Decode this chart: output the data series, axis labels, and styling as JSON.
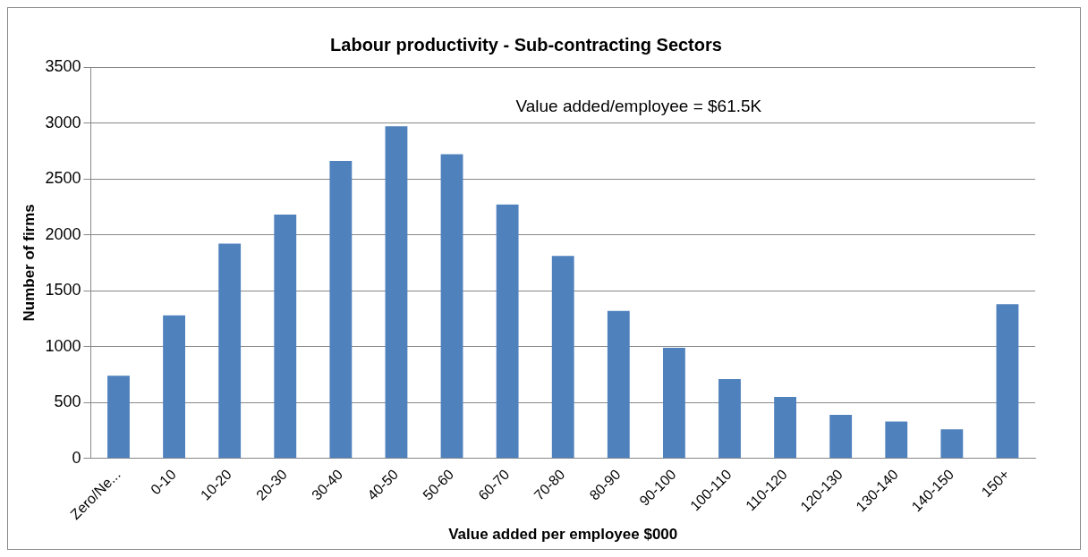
{
  "chart_data": {
    "type": "bar",
    "title": "Labour productivity - Sub-contracting Sectors",
    "xlabel": "Value added per employee $000",
    "ylabel": "Number of firms",
    "categories": [
      "Zero/Ne...",
      "0-10",
      "10-20",
      "20-30",
      "30-40",
      "40-50",
      "50-60",
      "60-70",
      "70-80",
      "80-90",
      "90-100",
      "100-110",
      "110-120",
      "120-130",
      "130-140",
      "140-150",
      "150+"
    ],
    "values": [
      740,
      1280,
      1920,
      2180,
      2660,
      2970,
      2720,
      2270,
      1810,
      1320,
      990,
      710,
      550,
      390,
      330,
      260,
      1380
    ],
    "color": "#4f81bd",
    "ylim": [
      0,
      3500
    ],
    "yticks": [
      0,
      500,
      1000,
      1500,
      2000,
      2500,
      3000,
      3500
    ],
    "grid": "y",
    "legend": false,
    "annotations": [
      "Value added/employee = $61.5K"
    ]
  }
}
